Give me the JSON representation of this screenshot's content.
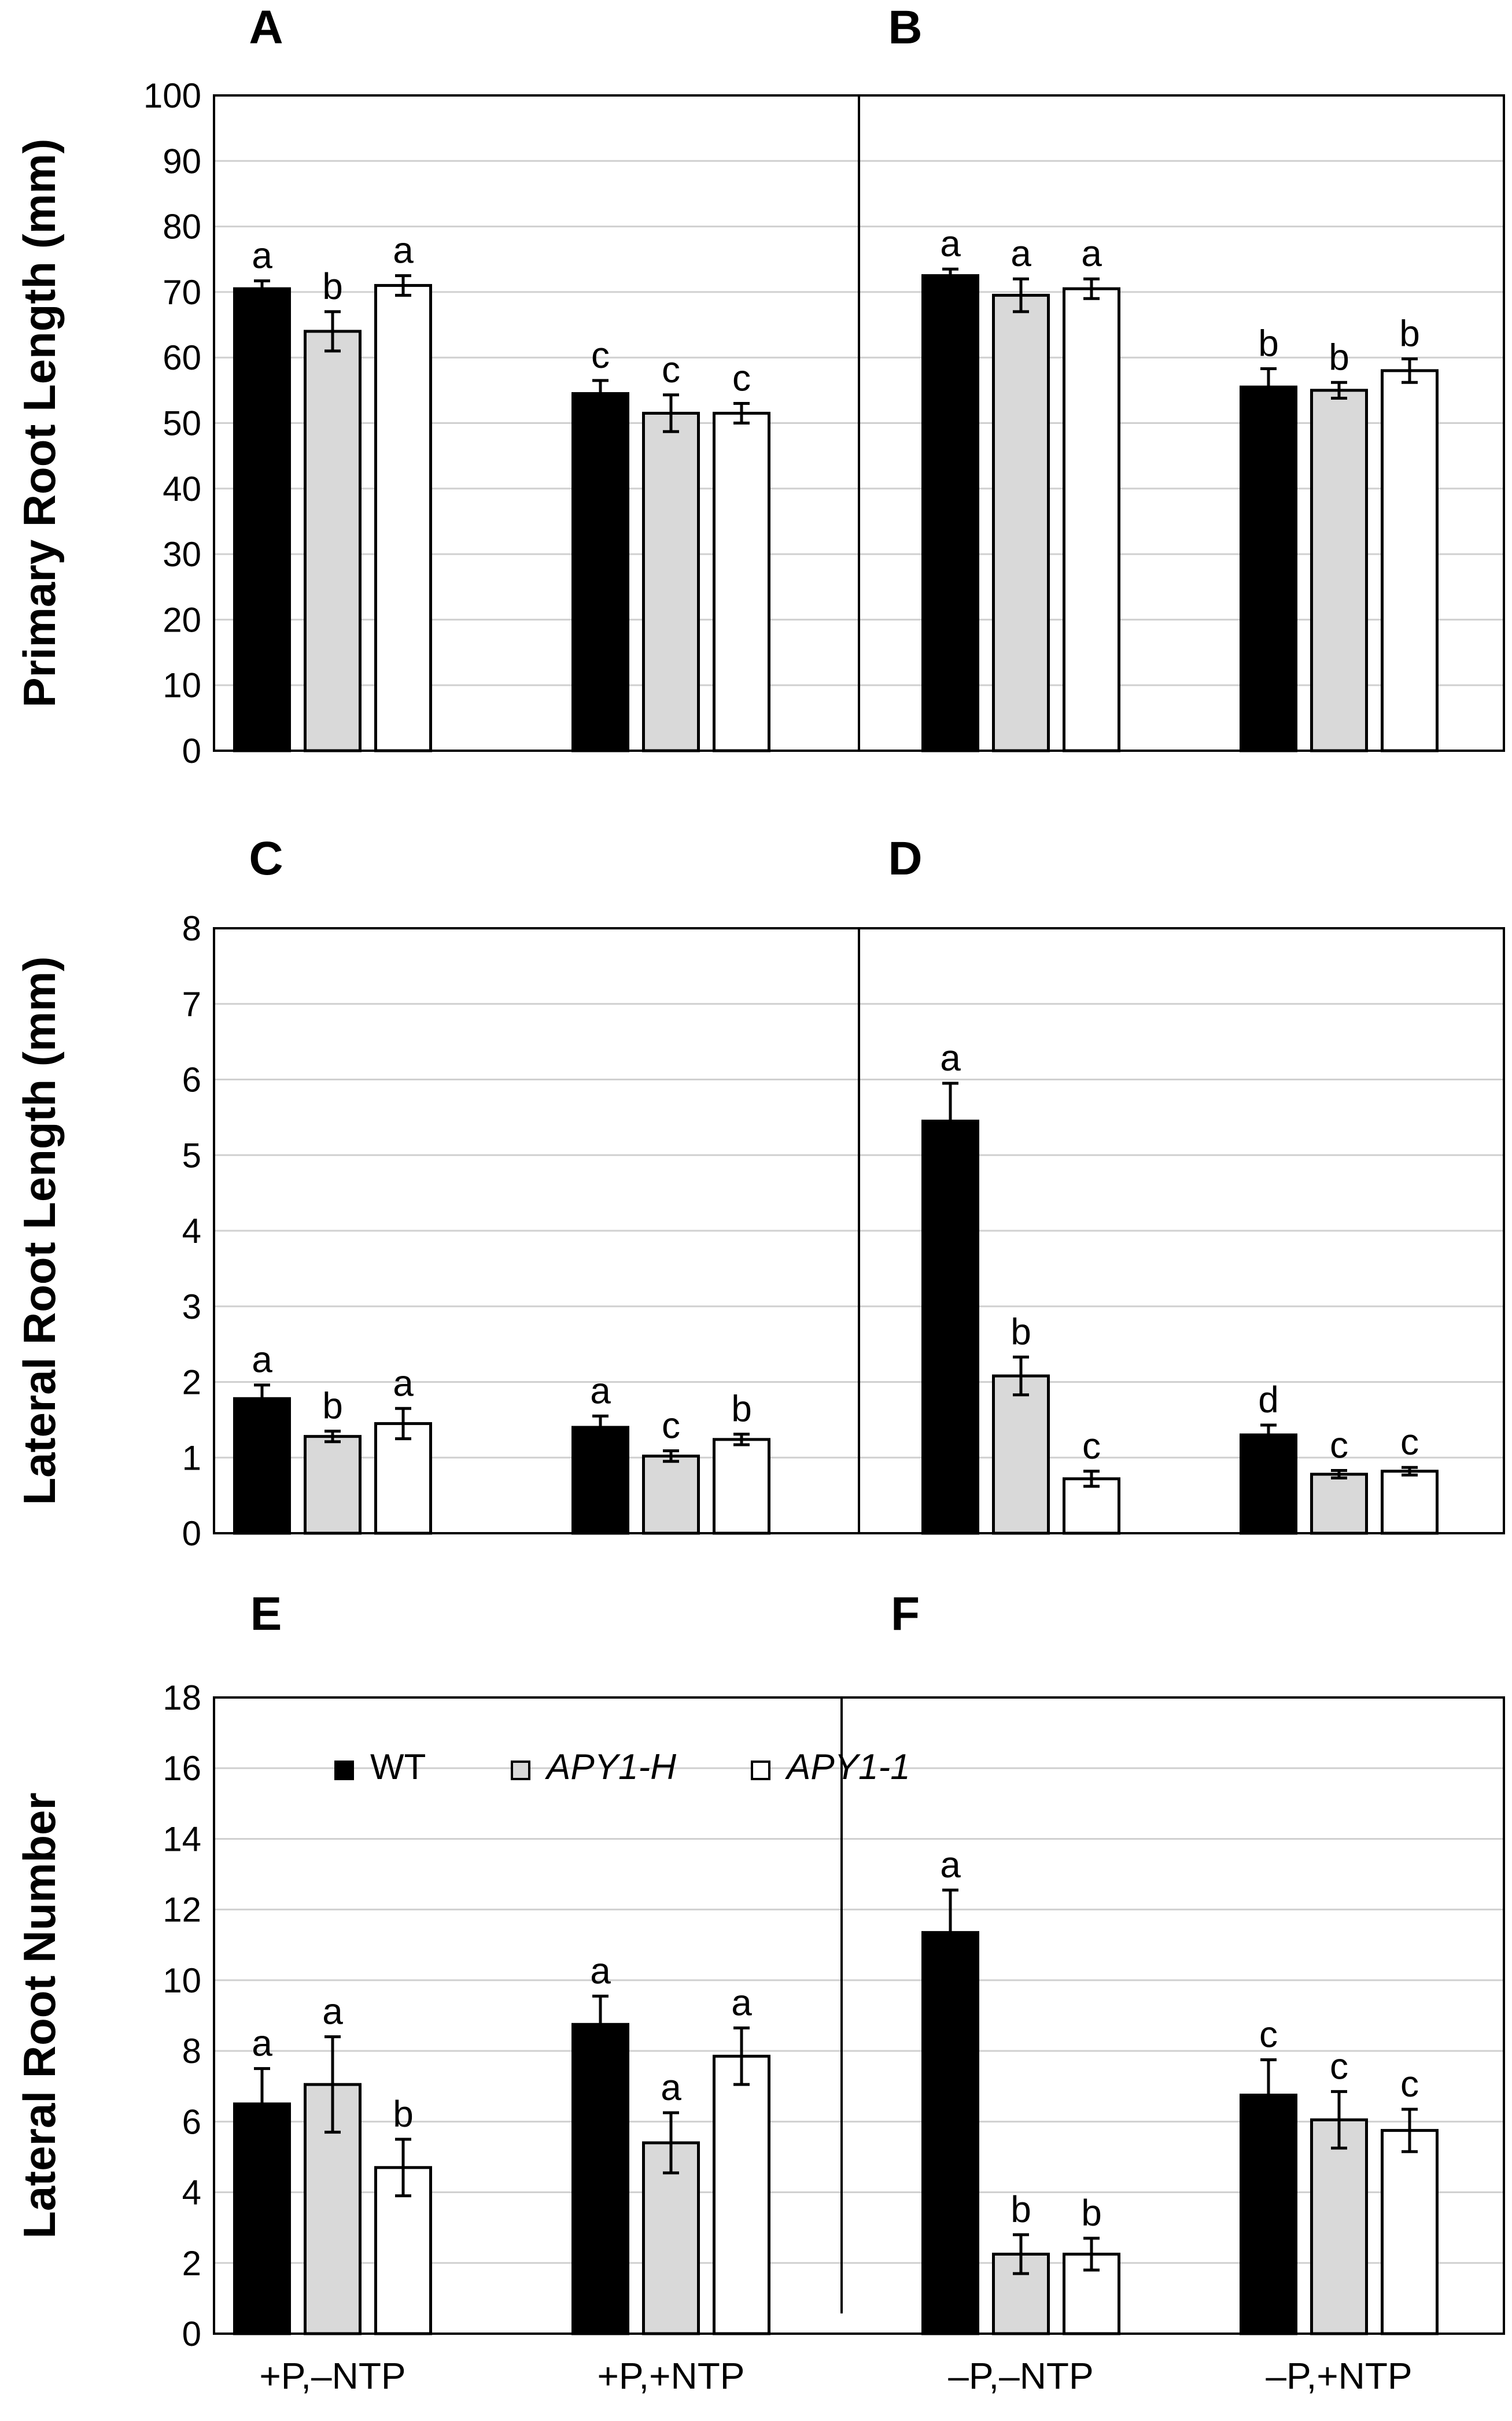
{
  "figure": {
    "panel_groups": [
      {
        "ylabel": "Primary Root Length (mm)",
        "left_panel": "A",
        "right_panel": "B"
      },
      {
        "ylabel": "Lateral Root Length (mm)",
        "left_panel": "C",
        "right_panel": "D"
      },
      {
        "ylabel": "Lateral Root Number",
        "left_panel": "E",
        "right_panel": "F"
      }
    ],
    "legend": [
      {
        "name": "WT",
        "italic": false,
        "color": "#000000"
      },
      {
        "name": "APY1-H",
        "italic": true,
        "color": "#d9d9d9"
      },
      {
        "name": "APY1-1",
        "italic": true,
        "color": "#ffffff"
      }
    ],
    "categories": [
      "+P,–NTP",
      "+P,+NTP",
      "–P,–NTP",
      "–P,+NTP"
    ]
  },
  "chart_data": [
    {
      "type": "bar",
      "ylabel": "Primary Root Length (mm)",
      "panels": [
        "A",
        "B"
      ],
      "ylim": [
        0,
        100
      ],
      "ytick_step": 10,
      "categories": [
        "+P,–NTP",
        "+P,+NTP",
        "–P,–NTP",
        "–P,+NTP"
      ],
      "series": [
        {
          "name": "WT",
          "values": [
            70.5,
            54.5,
            72.5,
            55.5
          ],
          "errors": [
            1.2,
            2.0,
            1.0,
            2.8
          ],
          "letters": [
            "a",
            "c",
            "a",
            "b"
          ]
        },
        {
          "name": "APY1-H",
          "values": [
            64,
            51.5,
            69.5,
            55
          ],
          "errors": [
            3.0,
            2.8,
            2.5,
            1.2
          ],
          "letters": [
            "b",
            "c",
            "a",
            "b"
          ]
        },
        {
          "name": "APY1-1",
          "values": [
            71,
            51.5,
            70.5,
            58
          ],
          "errors": [
            1.5,
            1.5,
            1.5,
            1.8
          ],
          "letters": [
            "a",
            "c",
            "a",
            "b"
          ]
        }
      ]
    },
    {
      "type": "bar",
      "ylabel": "Lateral Root Length (mm)",
      "panels": [
        "C",
        "D"
      ],
      "ylim": [
        0,
        8
      ],
      "ytick_step": 1,
      "categories": [
        "+P,–NTP",
        "+P,+NTP",
        "–P,–NTP",
        "–P,+NTP"
      ],
      "series": [
        {
          "name": "WT",
          "values": [
            1.78,
            1.4,
            5.45,
            1.3
          ],
          "errors": [
            0.18,
            0.15,
            0.5,
            0.13
          ],
          "letters": [
            "a",
            "a",
            "a",
            "d"
          ]
        },
        {
          "name": "APY1-H",
          "values": [
            1.28,
            1.02,
            2.08,
            0.78
          ],
          "errors": [
            0.07,
            0.07,
            0.25,
            0.05
          ],
          "letters": [
            "b",
            "c",
            "b",
            "c"
          ]
        },
        {
          "name": "APY1-1",
          "values": [
            1.45,
            1.24,
            0.72,
            0.82
          ],
          "errors": [
            0.2,
            0.07,
            0.1,
            0.05
          ],
          "letters": [
            "a",
            "b",
            "c",
            "c"
          ]
        }
      ]
    },
    {
      "type": "bar",
      "ylabel": "Lateral Root Number",
      "panels": [
        "E",
        "F"
      ],
      "ylim": [
        0,
        18
      ],
      "ytick_step": 2,
      "categories": [
        "+P,–NTP",
        "+P,+NTP",
        "–P,–NTP",
        "–P,+NTP"
      ],
      "series": [
        {
          "name": "WT",
          "values": [
            6.5,
            8.75,
            11.35,
            6.75
          ],
          "errors": [
            1.0,
            0.8,
            1.2,
            1.0
          ],
          "letters": [
            "a",
            "a",
            "a",
            "c"
          ]
        },
        {
          "name": "APY1-H",
          "values": [
            7.05,
            5.4,
            2.25,
            6.05
          ],
          "errors": [
            1.35,
            0.85,
            0.55,
            0.8
          ],
          "letters": [
            "a",
            "a",
            "b",
            "c"
          ]
        },
        {
          "name": "APY1-1",
          "values": [
            4.7,
            7.85,
            2.25,
            5.75
          ],
          "errors": [
            0.8,
            0.8,
            0.45,
            0.6
          ],
          "letters": [
            "b",
            "a",
            "b",
            "c"
          ]
        }
      ]
    }
  ]
}
